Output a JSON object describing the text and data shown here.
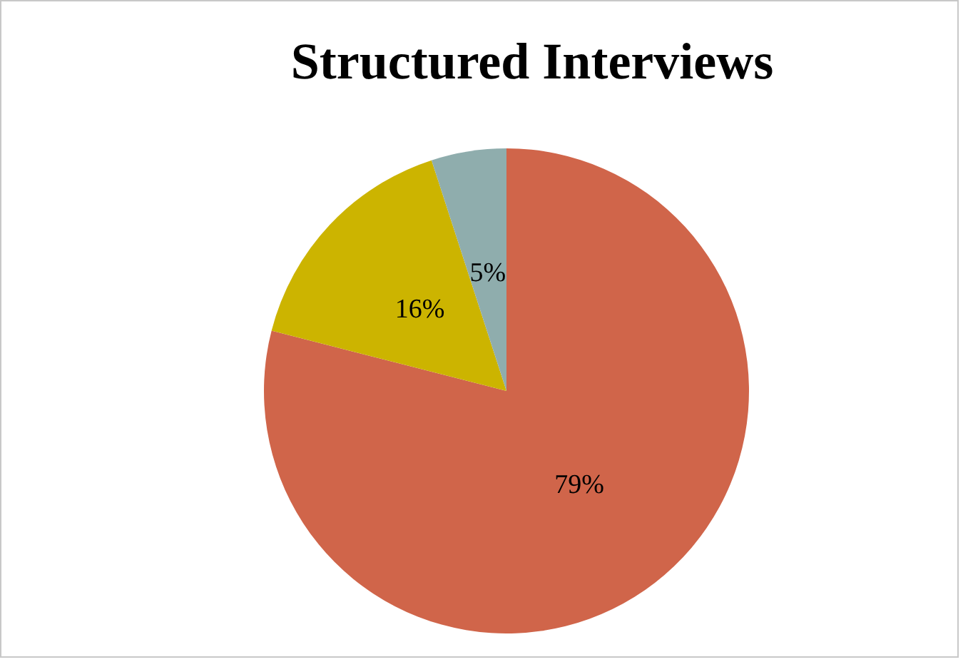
{
  "chart_data": {
    "type": "pie",
    "title": "Structured Interviews",
    "categories": [
      null,
      null,
      null
    ],
    "values": [
      79,
      16,
      5
    ],
    "colors": [
      "#d0654a",
      "#ccb400",
      "#8fadad"
    ],
    "value_labels": [
      "79%",
      "16%",
      "5%"
    ],
    "legend": false
  }
}
